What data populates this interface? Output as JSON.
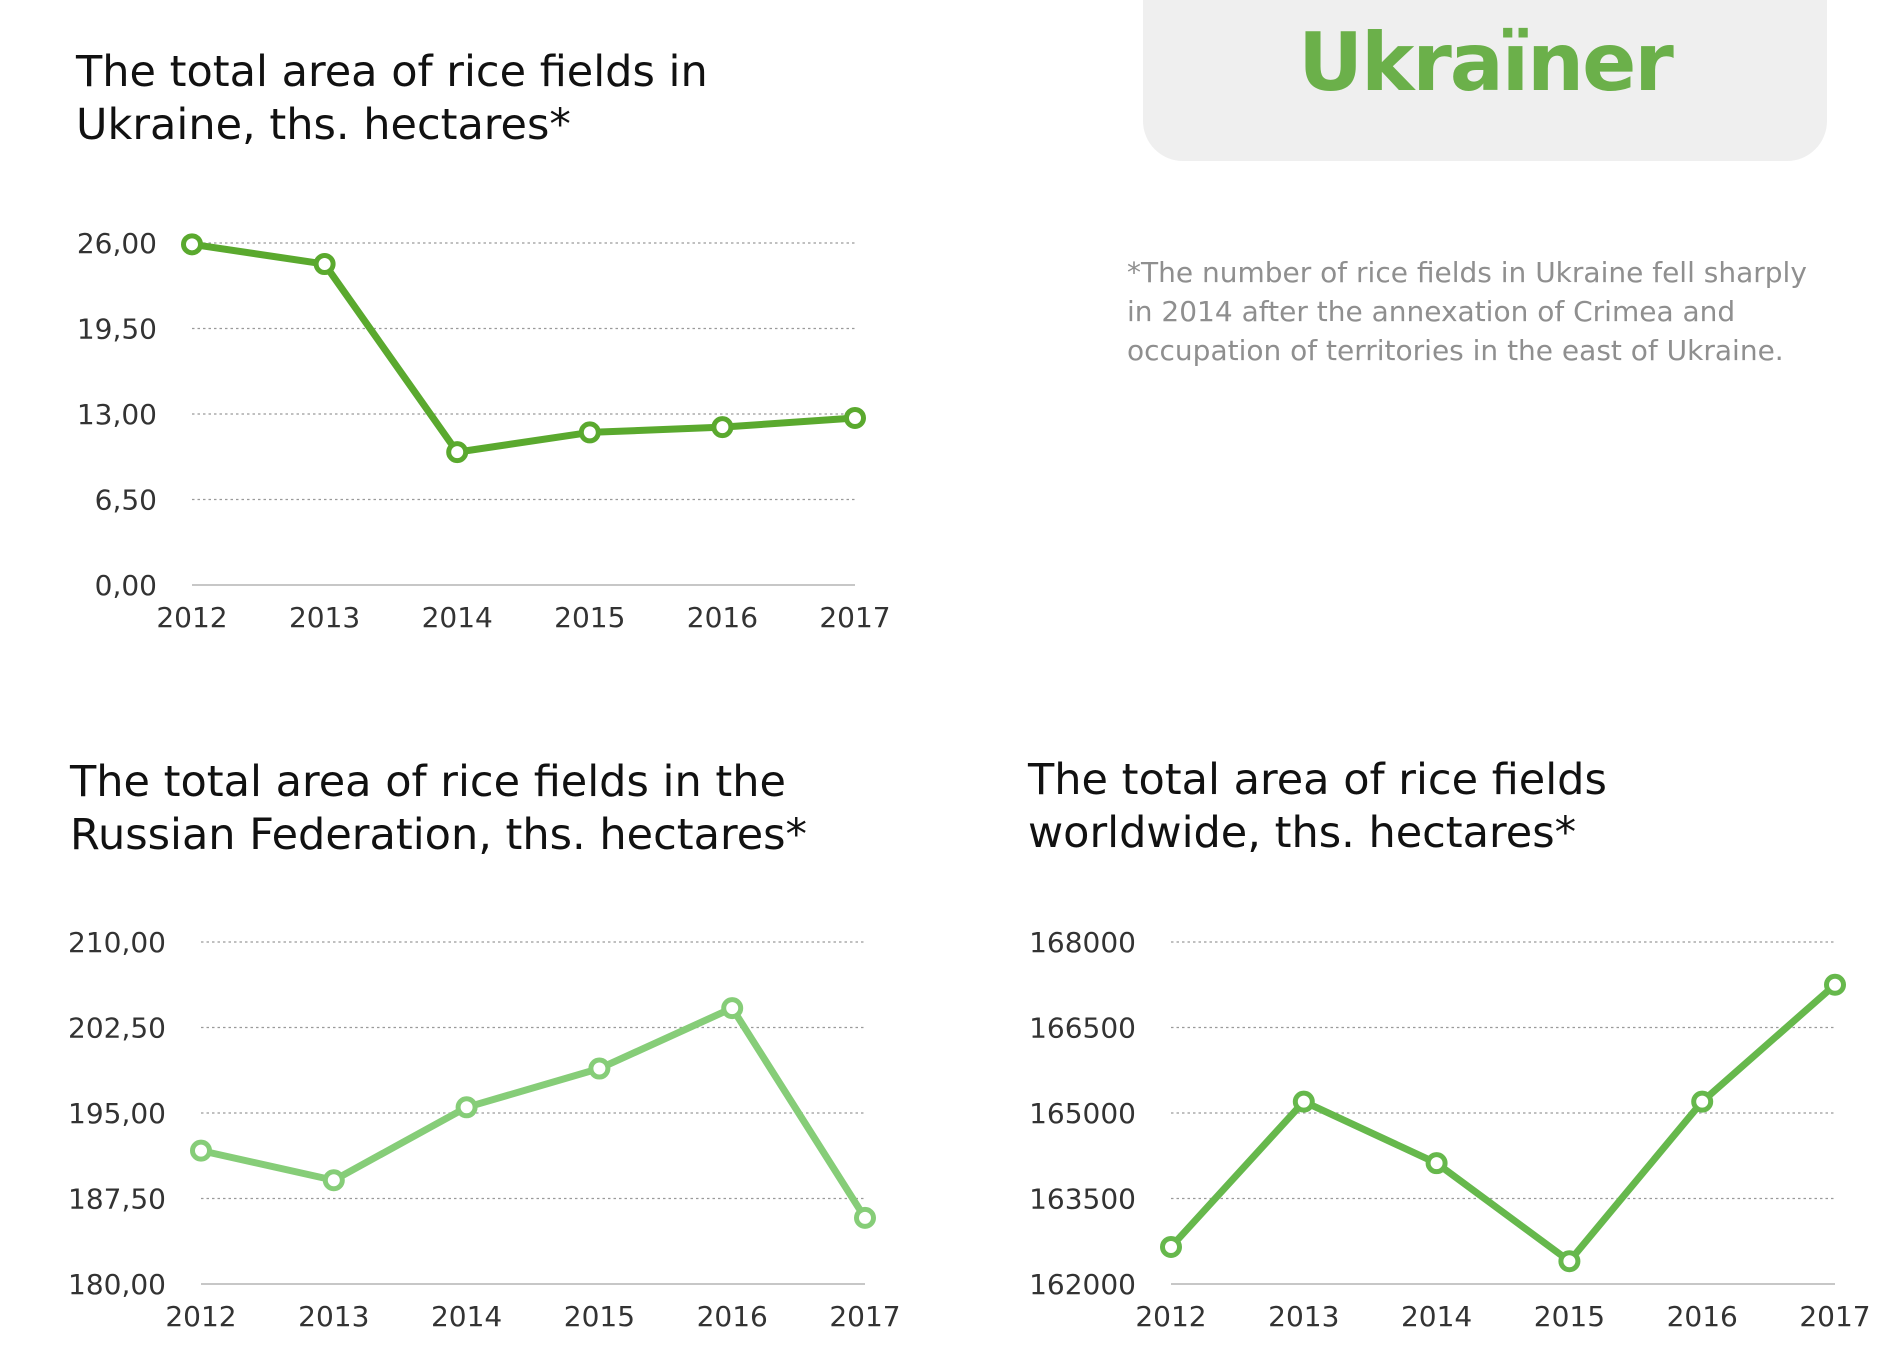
{
  "logo": {
    "text": "Ukraïner",
    "color": "#6bb04a"
  },
  "footnote": "*The number of rice fields in Ukraine fell sharply in 2014 after the annexation of Crimea and occupation of territories in the east of Ukraine.",
  "chart_data": [
    {
      "id": "ukraine",
      "type": "line",
      "title_lines": [
        "The total area of rice fields in",
        "Ukraine, ths. hectares*"
      ],
      "categories": [
        "2012",
        "2013",
        "2014",
        "2015",
        "2016",
        "2017"
      ],
      "values": [
        25.9,
        24.4,
        10.1,
        11.6,
        12.0,
        12.7
      ],
      "ylim": [
        0,
        26
      ],
      "yticks": [
        "0,00",
        "6,50",
        "13,00",
        "19,50",
        "26,00"
      ],
      "color": "#5aa92e",
      "grid": true,
      "xlabel": "",
      "ylabel": ""
    },
    {
      "id": "russia",
      "type": "line",
      "title_lines": [
        "The total area of rice fields in the",
        "Russian Federation, ths. hectares*"
      ],
      "categories": [
        "2012",
        "2013",
        "2014",
        "2015",
        "2016",
        "2017"
      ],
      "values": [
        191.7,
        189.1,
        195.5,
        198.9,
        204.2,
        185.8
      ],
      "ylim": [
        180,
        210
      ],
      "yticks": [
        "180,00",
        "187,50",
        "195,00",
        "202,50",
        "210,00"
      ],
      "color": "#86cd78",
      "grid": true,
      "xlabel": "",
      "ylabel": ""
    },
    {
      "id": "world",
      "type": "line",
      "title_lines": [
        "The total area of rice fields",
        "worldwide, ths. hectares*"
      ],
      "categories": [
        "2012",
        "2013",
        "2014",
        "2015",
        "2016",
        "2017"
      ],
      "values": [
        162650,
        165200,
        164120,
        162400,
        165200,
        167250
      ],
      "ylim": [
        162000,
        168000
      ],
      "yticks": [
        "162000",
        "163500",
        "165000",
        "166500",
        "168000"
      ],
      "color": "#66b84c",
      "grid": true,
      "xlabel": "",
      "ylabel": ""
    }
  ]
}
